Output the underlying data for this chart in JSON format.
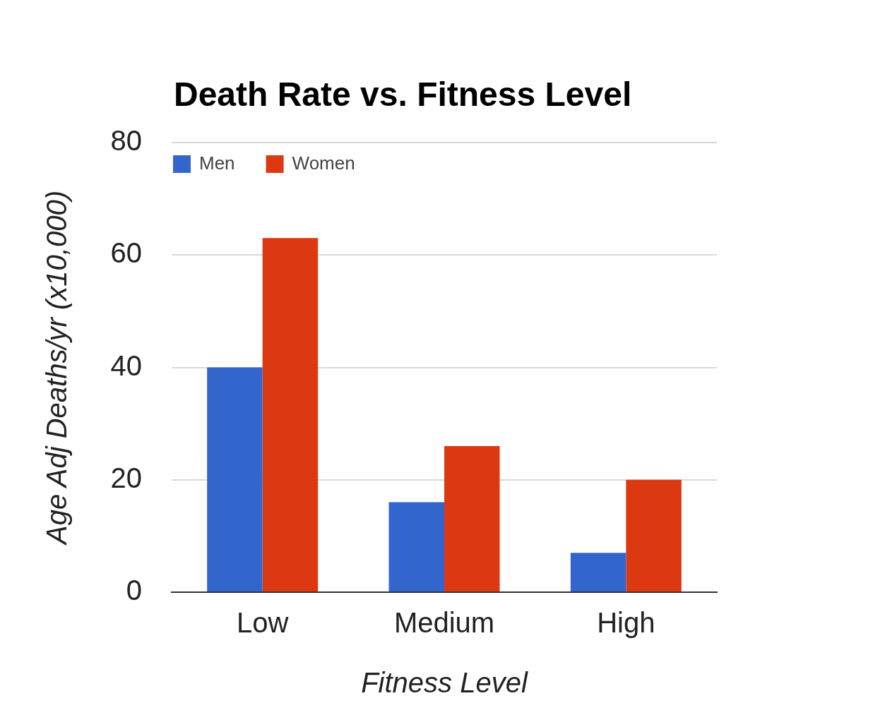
{
  "chart_data": {
    "type": "bar",
    "title": "Death Rate vs. Fitness Level",
    "xlabel": "Fitness Level",
    "ylabel": "Age Adj Deaths/yr (x10,000)",
    "categories": [
      "Low",
      "Medium",
      "High"
    ],
    "series": [
      {
        "name": "Men",
        "color": "#3366cc",
        "values": [
          40,
          16,
          7
        ]
      },
      {
        "name": "Women",
        "color": "#dc3912",
        "values": [
          63,
          26,
          20
        ]
      }
    ],
    "ylim": [
      0,
      80
    ],
    "yticks": [
      0,
      20,
      40,
      60,
      80
    ],
    "grid": "y",
    "legend": "top left"
  }
}
